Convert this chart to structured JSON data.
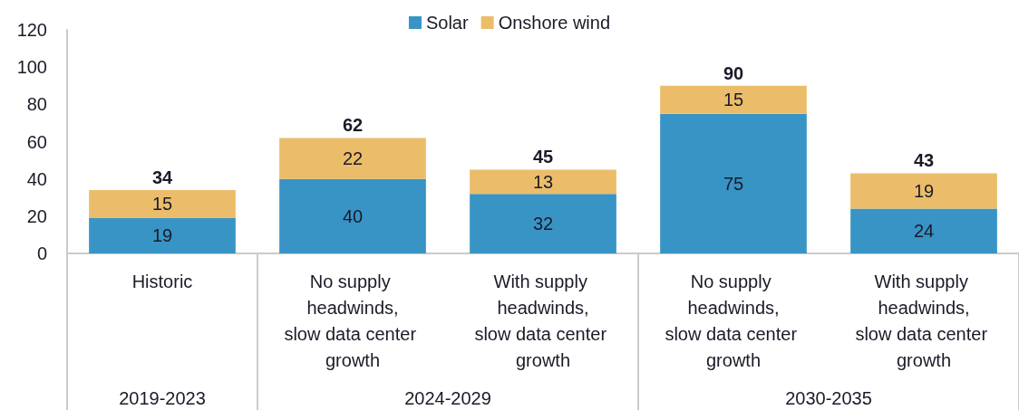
{
  "chart_data": {
    "type": "bar",
    "stacked": true,
    "categories": [
      "Historic",
      "No supply headwinds, slow data center growth",
      "With supply headwinds, slow data center growth",
      "No supply headwinds, slow data center growth",
      "With supply headwinds, slow data center growth"
    ],
    "series": [
      {
        "name": "Solar",
        "color": "#3894c5",
        "values": [
          19,
          40,
          32,
          75,
          24
        ]
      },
      {
        "name": "Onshore wind",
        "color": "#ebbd6a",
        "values": [
          15,
          22,
          13,
          15,
          19
        ]
      }
    ],
    "totals": [
      "34",
      "62",
      "45",
      "90",
      "43"
    ],
    "data_labels": true,
    "annotations": [
      "2019-2023",
      "2024-2029",
      "2030-2035"
    ],
    "ylim": [
      0,
      120
    ],
    "yticks": [
      0,
      20,
      40,
      60,
      80,
      100,
      120
    ],
    "grid": false,
    "legend": "top"
  }
}
